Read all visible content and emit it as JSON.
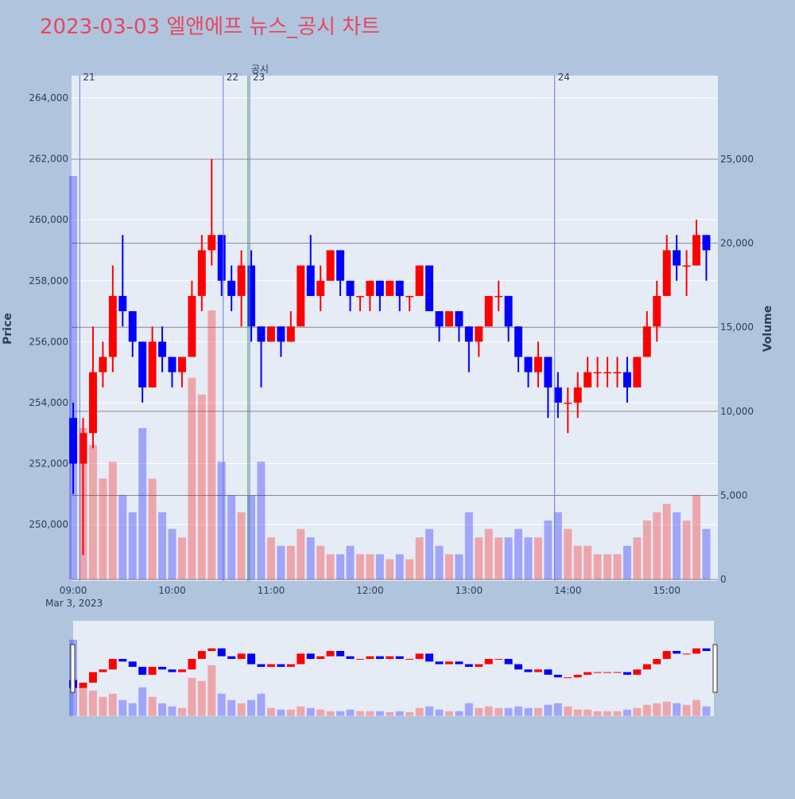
{
  "chart_data": {
    "type": "candlestick",
    "title": "2023-03-03 엘앤에프 뉴스_공시 차트",
    "x_date_label": "Mar 3, 2023",
    "yaxis_title": "Price",
    "y2axis_title": "Volume",
    "increasing_color": "#ff0000",
    "decreasing_color": "#0000ff",
    "xlim": [
      "08:59",
      "15:31"
    ],
    "xticks": [
      "09:00",
      "10:00",
      "11:00",
      "12:00",
      "13:00",
      "14:00",
      "15:00"
    ],
    "ylim": [
      248150,
      264730
    ],
    "yticks": [
      {
        "value": 250000,
        "label": "250,000"
      },
      {
        "value": 252000,
        "label": "252,000"
      },
      {
        "value": 254000,
        "label": "254,000"
      },
      {
        "value": 256000,
        "label": "256,000"
      },
      {
        "value": 258000,
        "label": "258,000"
      },
      {
        "value": 260000,
        "label": "260,000"
      },
      {
        "value": 262000,
        "label": "262,000"
      },
      {
        "value": 264000,
        "label": "264,000"
      }
    ],
    "y2lim": [
      -90,
      29970
    ],
    "y2ticks": [
      0,
      {
        "value": 5000,
        "label": "5,000"
      },
      {
        "value": 10000,
        "label": "10,000"
      },
      {
        "value": 15000,
        "label": "15,000"
      },
      {
        "value": 20000,
        "label": "20,000"
      },
      {
        "value": 25000,
        "label": "25,000"
      }
    ],
    "annotations": [
      {
        "x": "09:04",
        "label": "21",
        "color": "#6677ee"
      },
      {
        "x": "10:31",
        "label": "22",
        "color": "#6677ee"
      },
      {
        "x": "10:46",
        "label": "공시",
        "color": "#33aa33"
      },
      {
        "x": "10:47",
        "label": "23",
        "color": "#6677ee"
      },
      {
        "x": "13:52",
        "label": "24",
        "color": "#6677ee"
      }
    ],
    "x": [
      "09:00",
      "09:06",
      "09:12",
      "09:18",
      "09:24",
      "09:30",
      "09:36",
      "09:42",
      "09:48",
      "09:54",
      "10:00",
      "10:06",
      "10:12",
      "10:18",
      "10:24",
      "10:30",
      "10:36",
      "10:42",
      "10:48",
      "10:54",
      "11:00",
      "11:06",
      "11:12",
      "11:18",
      "11:24",
      "11:30",
      "11:36",
      "11:42",
      "11:48",
      "11:54",
      "12:00",
      "12:06",
      "12:12",
      "12:18",
      "12:24",
      "12:30",
      "12:36",
      "12:42",
      "12:48",
      "12:54",
      "13:00",
      "13:06",
      "13:12",
      "13:18",
      "13:24",
      "13:30",
      "13:36",
      "13:42",
      "13:48",
      "13:54",
      "14:00",
      "14:06",
      "14:12",
      "14:18",
      "14:24",
      "14:30",
      "14:36",
      "14:42",
      "14:48",
      "14:54",
      "15:00",
      "15:06",
      "15:12",
      "15:18",
      "15:24"
    ],
    "open": [
      253500,
      252000,
      253000,
      255000,
      255500,
      257500,
      257000,
      256000,
      254500,
      256000,
      255500,
      255000,
      255500,
      257500,
      259000,
      259500,
      258000,
      257500,
      258500,
      256500,
      256000,
      256500,
      256000,
      256500,
      258500,
      257500,
      258000,
      259000,
      258000,
      257500,
      257500,
      258000,
      257500,
      258000,
      257500,
      257500,
      258500,
      257000,
      256500,
      257000,
      256500,
      256000,
      256500,
      257500,
      257500,
      256500,
      255500,
      255000,
      255500,
      254500,
      254000,
      254000,
      254500,
      255000,
      255000,
      255000,
      255000,
      254500,
      255500,
      256500,
      257500,
      259000,
      258500,
      258500,
      259500
    ],
    "high": [
      254000,
      253500,
      256500,
      256000,
      258500,
      259500,
      257000,
      256000,
      256500,
      256500,
      255500,
      255500,
      258000,
      259500,
      262000,
      259500,
      258500,
      259000,
      259000,
      256500,
      256500,
      256500,
      257000,
      258500,
      259500,
      258500,
      259000,
      259000,
      258000,
      257500,
      258000,
      258000,
      258000,
      258000,
      257500,
      258500,
      258500,
      257000,
      257000,
      257000,
      256500,
      256500,
      257500,
      258000,
      257500,
      256500,
      255500,
      256000,
      255500,
      255000,
      254500,
      255000,
      255500,
      255500,
      255500,
      255500,
      255500,
      255500,
      257000,
      258000,
      259500,
      259500,
      259000,
      260000,
      259500
    ],
    "low": [
      251000,
      249000,
      252500,
      254500,
      255000,
      256500,
      255500,
      254000,
      254500,
      255000,
      254500,
      254500,
      255500,
      257000,
      258500,
      257500,
      257000,
      256500,
      256000,
      254500,
      256000,
      255500,
      256000,
      256500,
      257500,
      257000,
      258000,
      257500,
      257000,
      257000,
      257000,
      257000,
      257500,
      257000,
      257000,
      257500,
      257000,
      256000,
      256500,
      256000,
      255000,
      255500,
      256500,
      257000,
      256000,
      255000,
      254500,
      254500,
      253500,
      253500,
      253000,
      253500,
      254500,
      254500,
      254500,
      254500,
      254000,
      254500,
      255500,
      256000,
      257500,
      258000,
      257500,
      258500,
      258000
    ],
    "close": [
      252000,
      253000,
      255000,
      255500,
      257500,
      257000,
      256000,
      254500,
      256000,
      255500,
      255000,
      255500,
      257500,
      259000,
      259500,
      258000,
      257500,
      258500,
      256500,
      256000,
      256500,
      256000,
      256500,
      258500,
      257500,
      258000,
      259000,
      258000,
      257500,
      257500,
      258000,
      257500,
      258000,
      257500,
      257500,
      258500,
      257000,
      256500,
      257000,
      256500,
      256000,
      256500,
      257500,
      257500,
      256500,
      255500,
      255000,
      255500,
      254500,
      254000,
      254000,
      254500,
      255000,
      255000,
      255000,
      255000,
      254500,
      255500,
      256500,
      257500,
      259000,
      258500,
      258500,
      259500,
      259000
    ],
    "volume": [
      24000,
      9000,
      8000,
      6000,
      7000,
      5000,
      4000,
      9000,
      6000,
      4000,
      3000,
      2500,
      12000,
      11000,
      16000,
      7000,
      5000,
      4000,
      5000,
      7000,
      2500,
      2000,
      2000,
      3000,
      2500,
      2000,
      1500,
      1500,
      2000,
      1500,
      1500,
      1500,
      1200,
      1500,
      1200,
      2500,
      3000,
      2000,
      1500,
      1500,
      4000,
      2500,
      3000,
      2500,
      2500,
      3000,
      2500,
      2500,
      3500,
      4000,
      3000,
      2000,
      2000,
      1500,
      1500,
      1500,
      2000,
      2500,
      3500,
      4000,
      4500,
      4000,
      3500,
      5000,
      3000
    ]
  }
}
